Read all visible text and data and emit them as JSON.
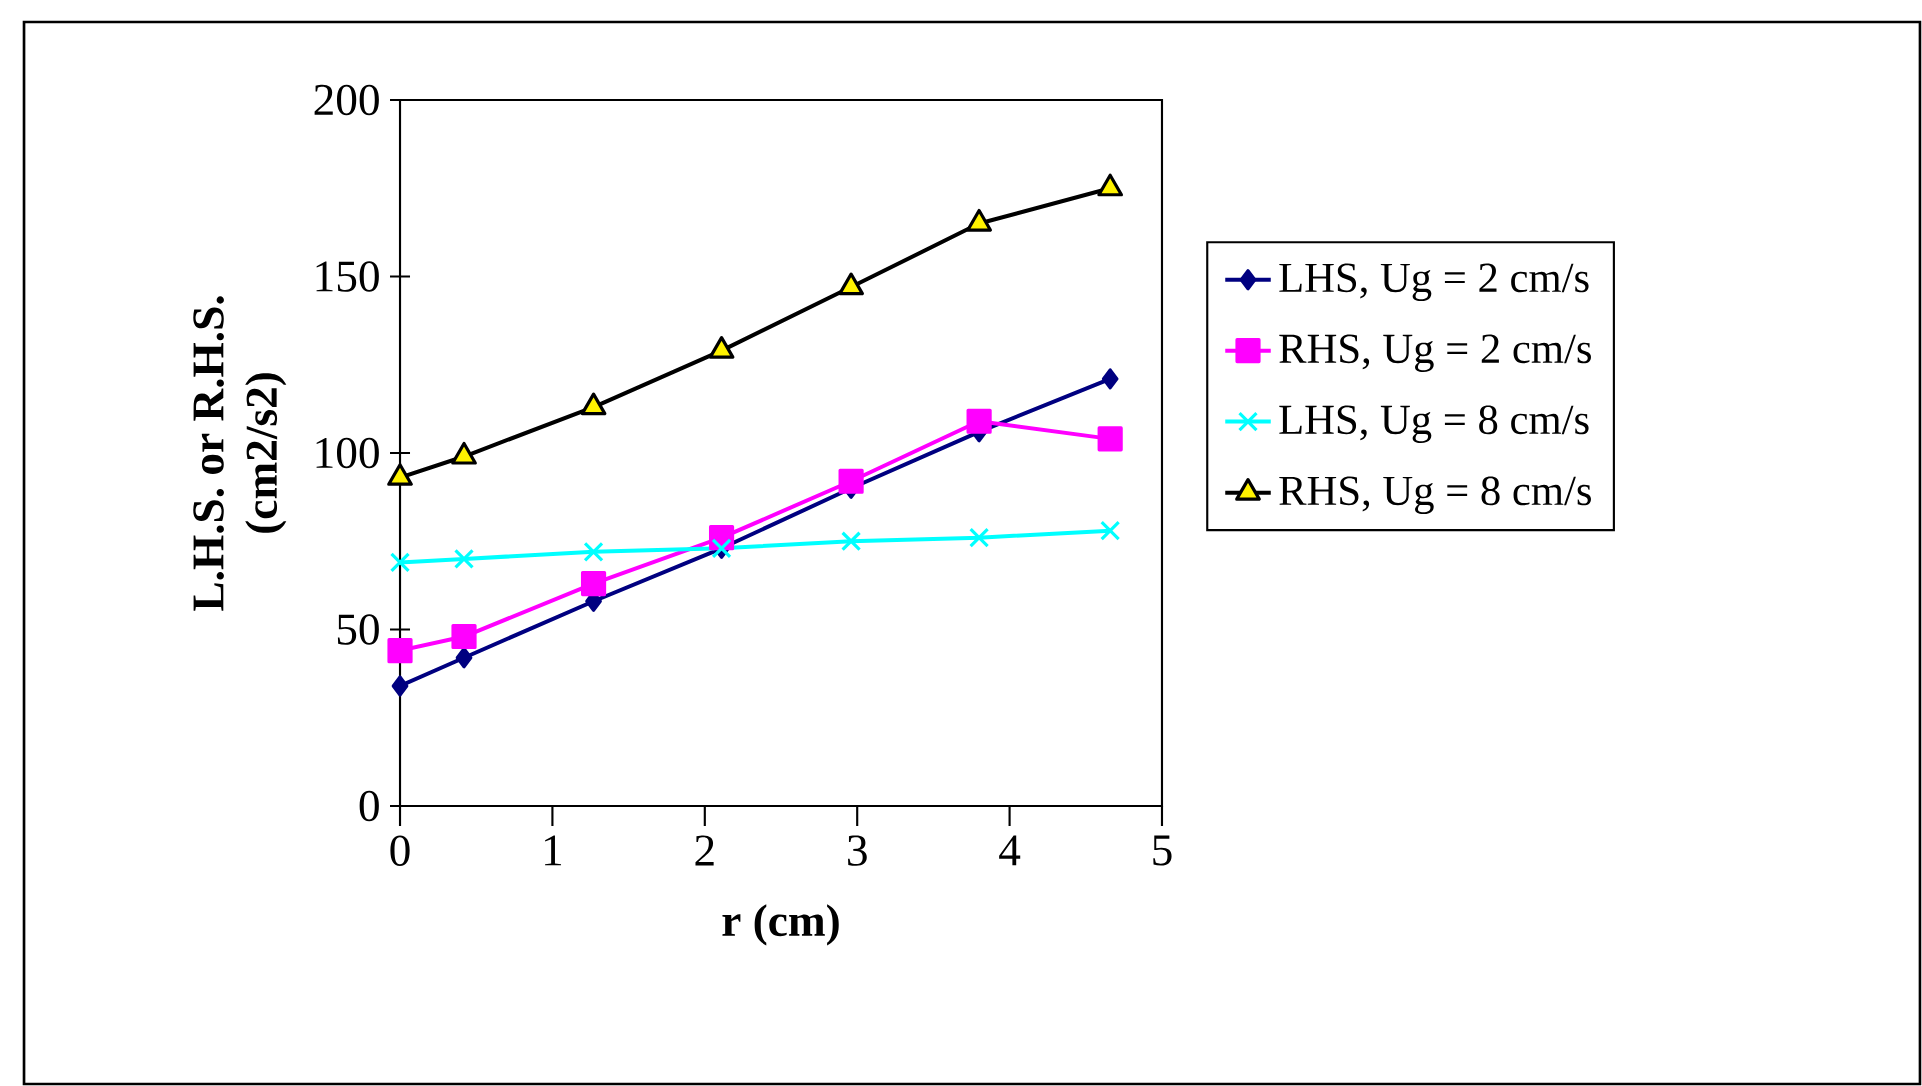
{
  "chart_data": {
    "type": "line",
    "xlabel": "r (cm)",
    "ylabel": "L.H.S. or R.H.S. (cm2/s2)",
    "x": [
      0,
      0.42,
      1.27,
      2.11,
      2.96,
      3.8,
      4.66
    ],
    "series": [
      {
        "name": "LHS, Ug = 2 cm/s",
        "color": "#000080",
        "marker": "diamond",
        "values": [
          34,
          42,
          58,
          73,
          90,
          106,
          121
        ]
      },
      {
        "name": "RHS, Ug = 2 cm/s",
        "color": "#ff00ff",
        "marker": "square",
        "values": [
          44,
          48,
          63,
          76,
          92,
          109,
          104
        ]
      },
      {
        "name": "LHS, Ug = 8 cm/s",
        "color": "#00ffff",
        "marker": "cross",
        "values": [
          69,
          70,
          72,
          73,
          75,
          76,
          78
        ]
      },
      {
        "name": "RHS, Ug = 8 cm/s",
        "color": "#000000",
        "marker": "triangle",
        "values": [
          93,
          99,
          113,
          129,
          147,
          165,
          175
        ]
      }
    ],
    "xlim": [
      0,
      5
    ],
    "xticks": [
      0,
      1,
      2,
      3,
      4,
      5
    ],
    "ylim": [
      0,
      200
    ],
    "yticks": [
      0,
      50,
      100,
      150,
      200
    ],
    "grid": false,
    "legend": "right"
  }
}
